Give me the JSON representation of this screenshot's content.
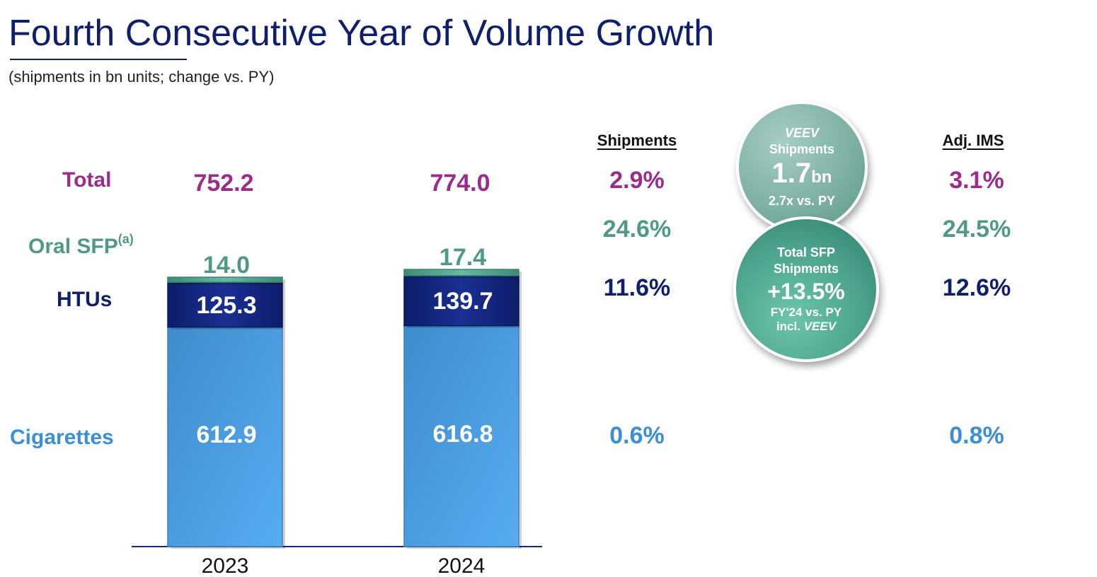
{
  "header": {
    "title": "Fourth Consecutive Year of Volume Growth",
    "subtitle": "(shipments in bn units; change vs. PY)"
  },
  "row_labels": {
    "total": "Total",
    "oral_sfp": "Oral SFP",
    "oral_sfp_sup": "(a)",
    "htus": "HTUs",
    "cigarettes": "Cigarettes"
  },
  "columns": {
    "shipments": "Shipments",
    "adj_ims": "Adj. IMS"
  },
  "growth": {
    "shipments": {
      "total": "2.9%",
      "oral_sfp": "24.6%",
      "htus": "11.6%",
      "cigarettes": "0.6%"
    },
    "adj_ims": {
      "total": "3.1%",
      "oral_sfp": "24.5%",
      "htus": "12.6%",
      "cigarettes": "0.8%"
    }
  },
  "bubbles": {
    "veev": {
      "line1": "VEEV",
      "line2": "Shipments",
      "value": "1.7",
      "unit": "bn",
      "note": "2.7x vs. PY"
    },
    "sfp": {
      "line1": "Total SFP",
      "line2": "Shipments",
      "value": "+13.5%",
      "note1": "FY'24 vs. PY",
      "note2_prefix": "incl. ",
      "note2_italic": "VEEV"
    }
  },
  "colors": {
    "total": "#9b2c8c",
    "oral_sfp": "#4f9985",
    "htus": "#0f1f6b",
    "cigarettes": "#3a8fd6",
    "bar_cigarettes": "#4a9ee4",
    "bar_htus": "#13267e",
    "bar_oral": "#4fa08a"
  },
  "chart_data": {
    "type": "bar",
    "stacked": true,
    "categories": [
      "2023",
      "2024"
    ],
    "totals": [
      "752.2",
      "774.0"
    ],
    "series": [
      {
        "name": "Cigarettes",
        "values": [
          612.9,
          616.8
        ]
      },
      {
        "name": "HTUs",
        "values": [
          125.3,
          139.7
        ]
      },
      {
        "name": "Oral SFP",
        "values": [
          14.0,
          17.4
        ]
      }
    ],
    "ylim": [
      0,
      800
    ]
  }
}
